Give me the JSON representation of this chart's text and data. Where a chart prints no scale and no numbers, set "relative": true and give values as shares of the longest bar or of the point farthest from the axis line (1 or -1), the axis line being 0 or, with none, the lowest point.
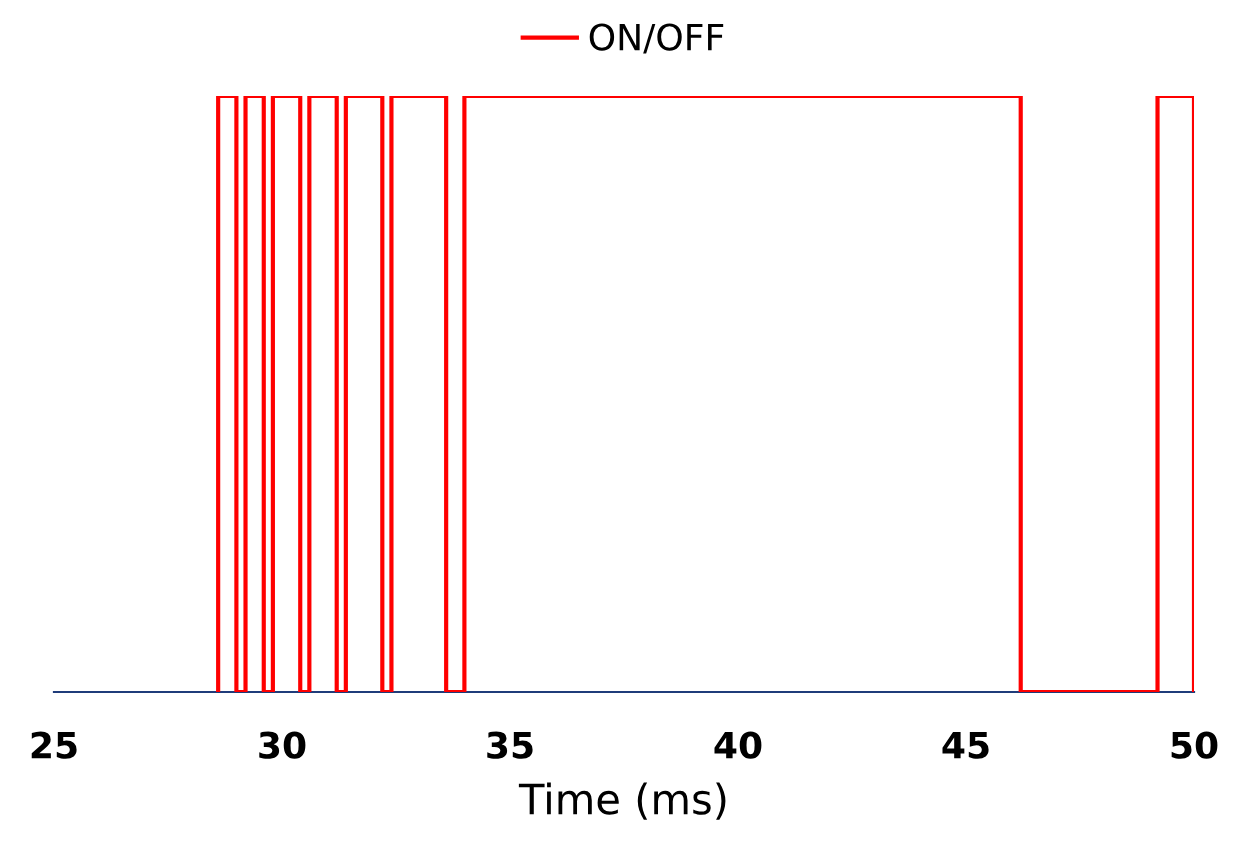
{
  "chart_data": {
    "type": "step",
    "xlabel": "Time (ms)",
    "relative": true,
    "xlim": [
      25,
      50
    ],
    "xticks": [
      25,
      30,
      35,
      40,
      45,
      50
    ],
    "legend": "top",
    "grid": false,
    "series": [
      {
        "name": "ON/OFF",
        "color": "#ff0000",
        "x": [
          28.6,
          28.6,
          29.0,
          29.2,
          29.6,
          29.8,
          30.4,
          30.6,
          31.2,
          31.4,
          32.2,
          32.4,
          33.6,
          34.0,
          46.2,
          49.2,
          50.0
        ],
        "values": [
          0,
          1,
          0,
          1,
          0,
          1,
          0,
          1,
          0,
          1,
          0,
          1,
          0,
          1,
          0,
          1,
          0
        ]
      }
    ]
  }
}
